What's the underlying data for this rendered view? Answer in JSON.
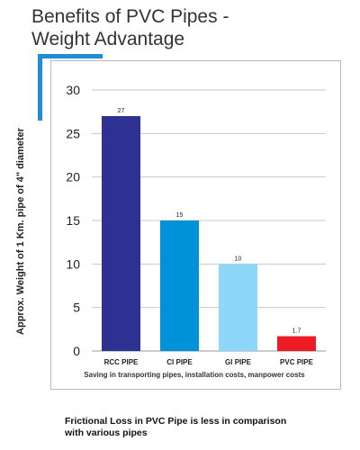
{
  "header": {
    "title_line1": "Benefits of PVC Pipes -",
    "title_line2": "Weight Advantage"
  },
  "footer": {
    "saving_note": "Saving in transporting pipes, installation costs, manpower costs",
    "caption_line1": "Frictional Loss in PVC Pipe is less in comparison",
    "caption_line2": "with various pipes"
  },
  "colors": {
    "accent": "#1e8fd6",
    "rcc": "#2e3192",
    "ci": "#0092d8",
    "gi": "#8dd8f8",
    "pvc": "#ed1c24"
  },
  "chart_data": {
    "type": "bar",
    "title": "Benefits of PVC Pipes - Weight Advantage",
    "ylabel": "Approx. Weight of 1 Km. pipe of 4\" diameter",
    "xlabel": "",
    "categories": [
      "RCC PIPE",
      "CI PIPE",
      "GI PIPE",
      "PVC PIPE"
    ],
    "values": [
      27,
      15,
      10,
      1.7
    ],
    "value_labels": [
      "27",
      "15",
      "10",
      "1.7"
    ],
    "colors": [
      "#2e3192",
      "#0092d8",
      "#8dd8f8",
      "#ed1c24"
    ],
    "ylim": [
      0,
      30
    ],
    "yticks": [
      0,
      5,
      10,
      15,
      20,
      25,
      30
    ],
    "grid": true,
    "legend": "none"
  }
}
